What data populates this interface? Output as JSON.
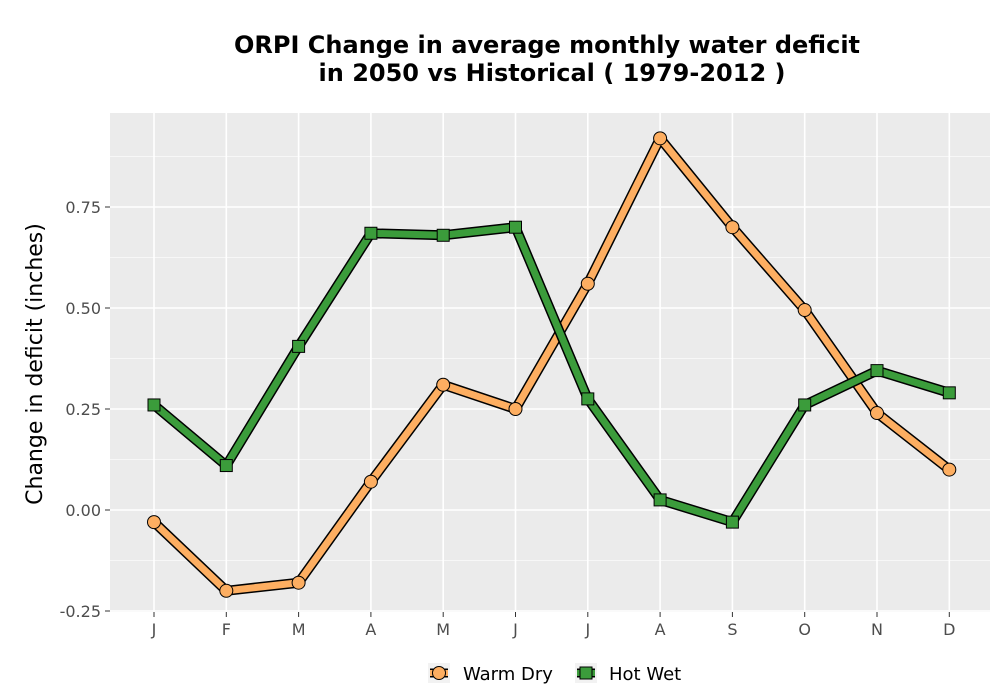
{
  "chart_data": {
    "type": "line",
    "title_line1": "ORPI  Change in average monthly water deficit",
    "title_line2": "in 2050 vs Historical ( 1979-2012 )",
    "xlabel": "",
    "ylabel": "Change in deficit (inches)",
    "categories": [
      "J",
      "F",
      "M",
      "A",
      "M",
      "J",
      "J",
      "A",
      "S",
      "O",
      "N",
      "D"
    ],
    "ylim": [
      -0.25,
      0.98
    ],
    "yticks": [
      -0.25,
      0.0,
      0.25,
      0.5,
      0.75
    ],
    "ytick_labels": [
      "-0.25",
      "0.00",
      "0.25",
      "0.50",
      "0.75"
    ],
    "grid": true,
    "legend_position": "bottom",
    "series": [
      {
        "name": "Warm Dry",
        "marker": "circle",
        "color": "#FDAE61",
        "values": [
          -0.03,
          -0.2,
          -0.18,
          0.07,
          0.31,
          0.25,
          0.56,
          0.92,
          0.7,
          0.495,
          0.24,
          0.1
        ]
      },
      {
        "name": "Hot Wet",
        "marker": "square",
        "color": "#3B9C3B",
        "values": [
          0.26,
          0.11,
          0.405,
          0.685,
          0.68,
          0.7,
          0.275,
          0.025,
          -0.03,
          0.26,
          0.345,
          0.29
        ]
      }
    ]
  }
}
